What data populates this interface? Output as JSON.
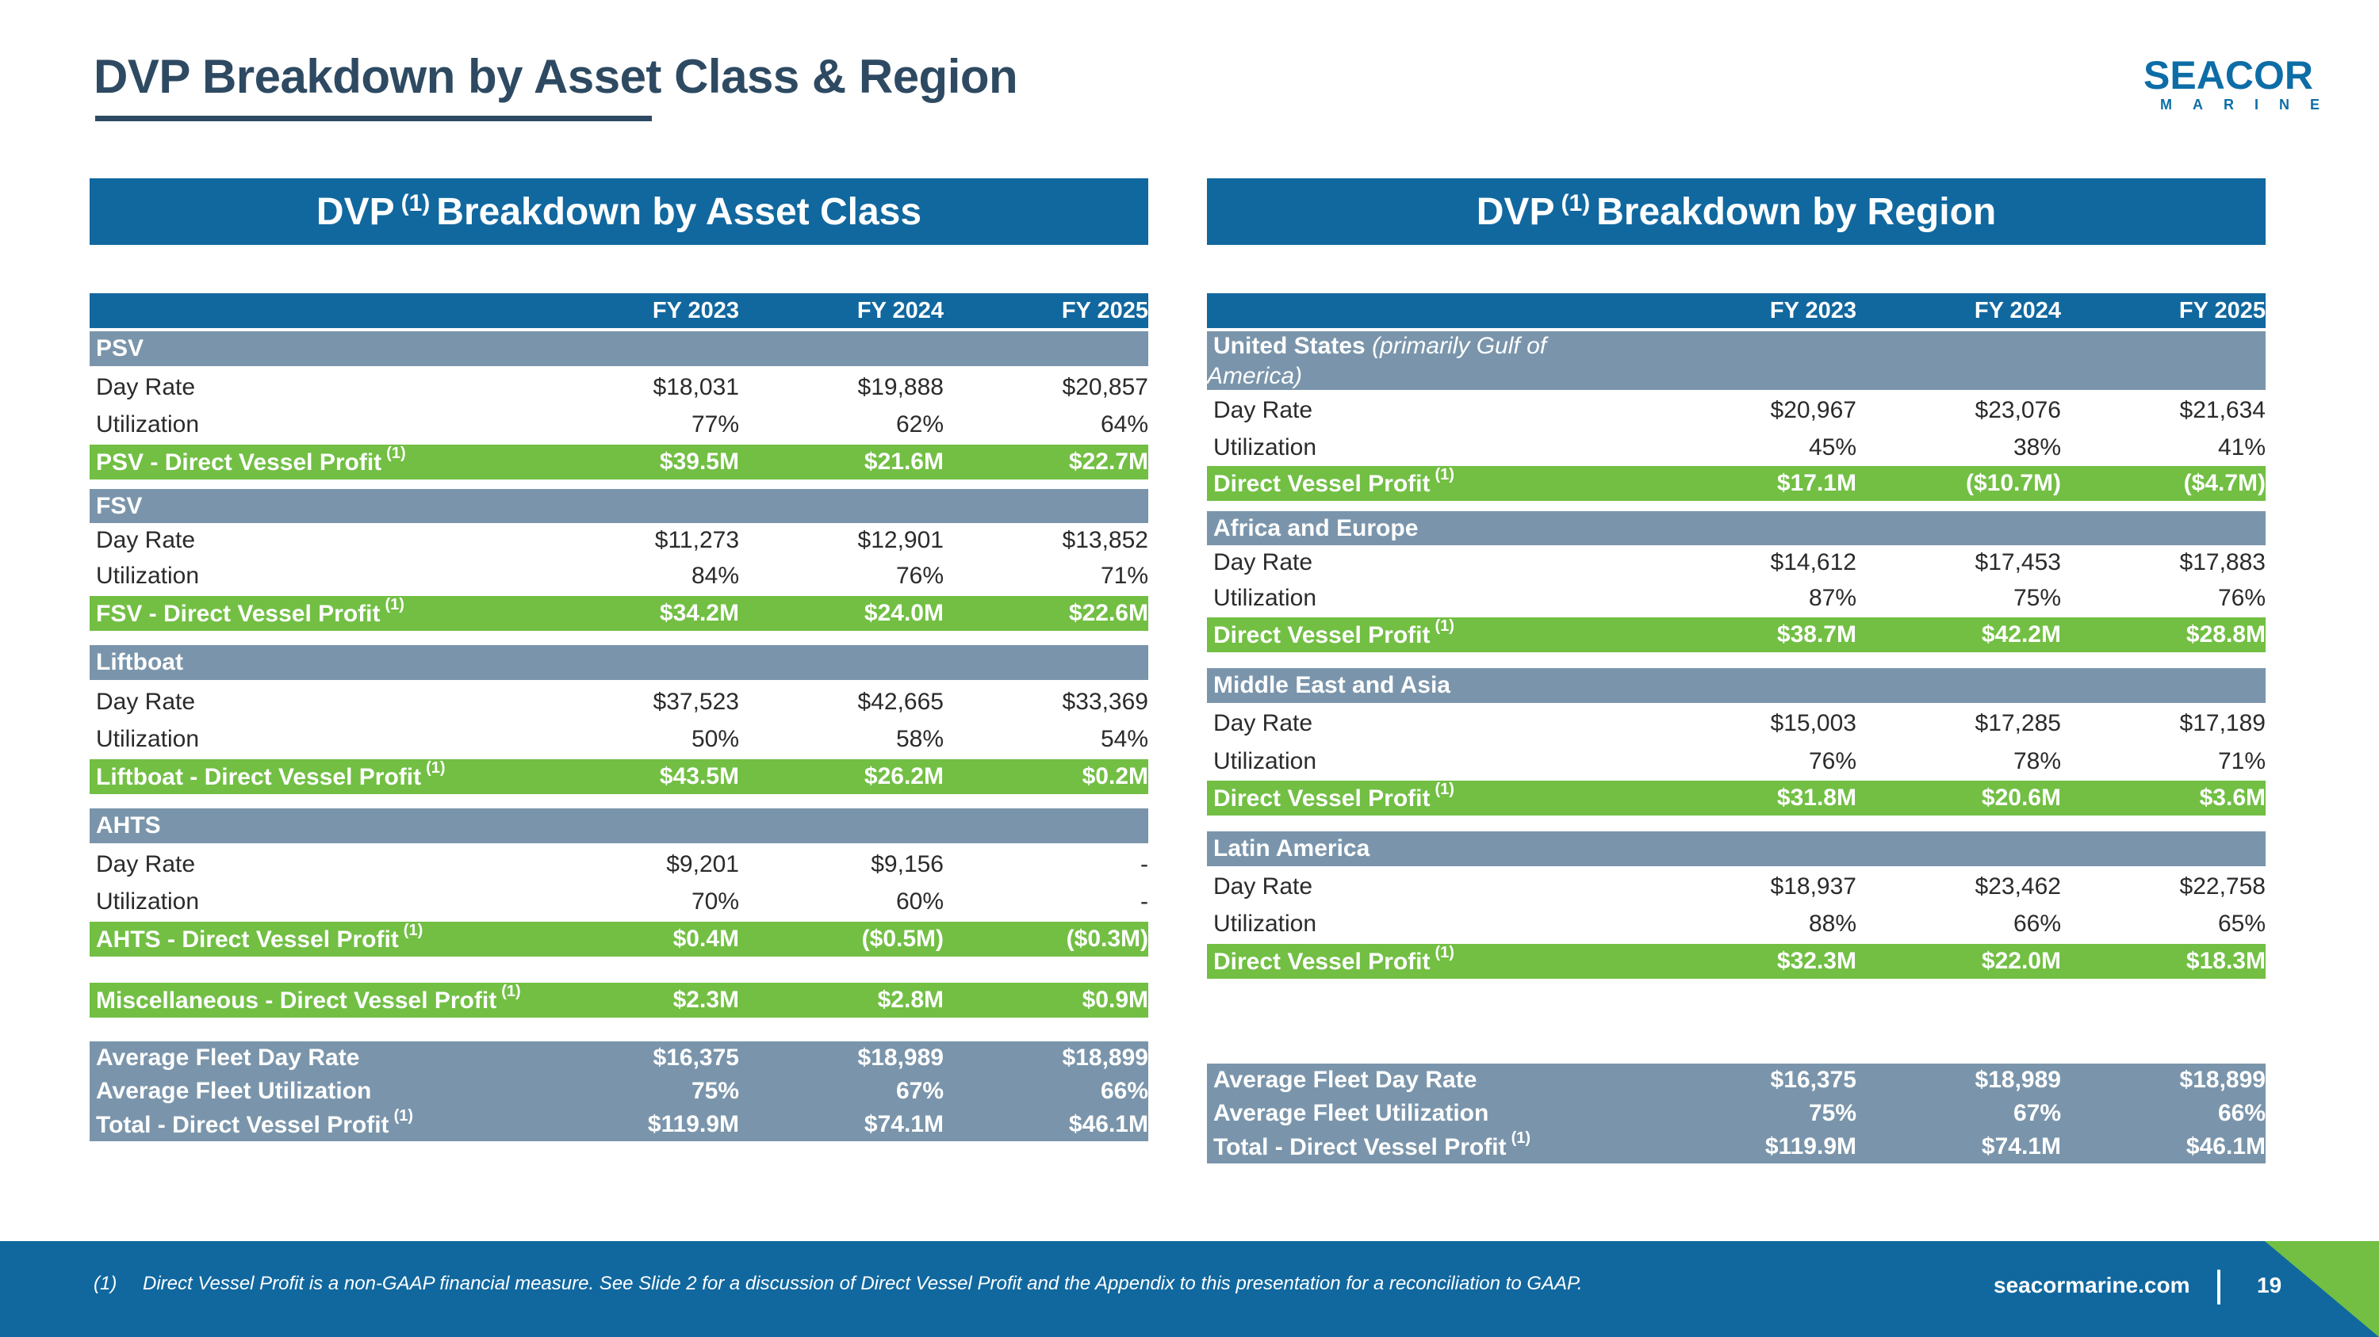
{
  "title": "DVP Breakdown by Asset Class & Region",
  "logo": {
    "top": "SEACOR",
    "bottom": "MARINE"
  },
  "colors": {
    "primary_blue": "#11689f",
    "section_gray": "#7a95ab",
    "profit_green": "#72bf44",
    "title_navy": "#2e4a62"
  },
  "left": {
    "header_pre": "DVP",
    "header_sup": "(1)",
    "header_post": "Breakdown by Asset Class",
    "columns": [
      "FY 2023",
      "FY 2024",
      "FY 2025"
    ],
    "psv": {
      "name": "PSV",
      "day_rate": {
        "label": "Day Rate",
        "values": [
          "$18,031",
          "$19,888",
          "$20,857"
        ]
      },
      "utilization": {
        "label": "Utilization",
        "values": [
          "77%",
          "62%",
          "64%"
        ]
      },
      "profit": {
        "label": "PSV - Direct Vessel Profit",
        "sup": "(1)",
        "values": [
          "$39.5M",
          "$21.6M",
          "$22.7M"
        ]
      }
    },
    "fsv": {
      "name": "FSV",
      "day_rate": {
        "label": "Day Rate",
        "values": [
          "$11,273",
          "$12,901",
          "$13,852"
        ]
      },
      "utilization": {
        "label": "Utilization",
        "values": [
          "84%",
          "76%",
          "71%"
        ]
      },
      "profit": {
        "label": "FSV - Direct Vessel Profit",
        "sup": "(1)",
        "values": [
          "$34.2M",
          "$24.0M",
          "$22.6M"
        ]
      }
    },
    "liftboat": {
      "name": "Liftboat",
      "day_rate": {
        "label": "Day Rate",
        "values": [
          "$37,523",
          "$42,665",
          "$33,369"
        ]
      },
      "utilization": {
        "label": "Utilization",
        "values": [
          "50%",
          "58%",
          "54%"
        ]
      },
      "profit": {
        "label": "Liftboat - Direct Vessel Profit",
        "sup": "(1)",
        "values": [
          "$43.5M",
          "$26.2M",
          "$0.2M"
        ]
      }
    },
    "ahts": {
      "name": "AHTS",
      "day_rate": {
        "label": "Day Rate",
        "values": [
          "$9,201",
          "$9,156",
          "-"
        ]
      },
      "utilization": {
        "label": "Utilization",
        "values": [
          "70%",
          "60%",
          "-"
        ]
      },
      "profit": {
        "label": "AHTS - Direct Vessel Profit",
        "sup": "(1)",
        "values": [
          "$0.4M",
          "($0.5M)",
          "($0.3M)"
        ]
      }
    },
    "misc": {
      "label": "Miscellaneous - Direct Vessel Profit",
      "sup": "(1)",
      "values": [
        "$2.3M",
        "$2.8M",
        "$0.9M"
      ]
    },
    "summary": {
      "day_rate": {
        "label": "Average Fleet Day Rate",
        "values": [
          "$16,375",
          "$18,989",
          "$18,899"
        ]
      },
      "utilization": {
        "label": "Average Fleet Utilization",
        "values": [
          "75%",
          "67%",
          "66%"
        ]
      },
      "total": {
        "label": "Total - Direct Vessel Profit",
        "sup": "(1)",
        "values": [
          "$119.9M",
          "$74.1M",
          "$46.1M"
        ]
      }
    }
  },
  "right": {
    "header_pre": "DVP",
    "header_sup": "(1)",
    "header_post": "Breakdown by Region",
    "columns": [
      "FY 2023",
      "FY 2024",
      "FY 2025"
    ],
    "us": {
      "name": "United States",
      "name_note": "(primarily Gulf of America)",
      "day_rate": {
        "label": "Day Rate",
        "values": [
          "$20,967",
          "$23,076",
          "$21,634"
        ]
      },
      "utilization": {
        "label": "Utilization",
        "values": [
          "45%",
          "38%",
          "41%"
        ]
      },
      "profit": {
        "label": "Direct Vessel Profit",
        "sup": "(1)",
        "values": [
          "$17.1M",
          "($10.7M)",
          "($4.7M)"
        ]
      }
    },
    "africa": {
      "name": "Africa and Europe",
      "day_rate": {
        "label": "Day Rate",
        "values": [
          "$14,612",
          "$17,453",
          "$17,883"
        ]
      },
      "utilization": {
        "label": "Utilization",
        "values": [
          "87%",
          "75%",
          "76%"
        ]
      },
      "profit": {
        "label": "Direct Vessel Profit",
        "sup": "(1)",
        "values": [
          "$38.7M",
          "$42.2M",
          "$28.8M"
        ]
      }
    },
    "mea": {
      "name": "Middle East and Asia",
      "day_rate": {
        "label": "Day Rate",
        "values": [
          "$15,003",
          "$17,285",
          "$17,189"
        ]
      },
      "utilization": {
        "label": "Utilization",
        "values": [
          "76%",
          "78%",
          "71%"
        ]
      },
      "profit": {
        "label": "Direct Vessel Profit",
        "sup": "(1)",
        "values": [
          "$31.8M",
          "$20.6M",
          "$3.6M"
        ]
      }
    },
    "latam": {
      "name": "Latin America",
      "day_rate": {
        "label": "Day Rate",
        "values": [
          "$18,937",
          "$23,462",
          "$22,758"
        ]
      },
      "utilization": {
        "label": "Utilization",
        "values": [
          "88%",
          "66%",
          "65%"
        ]
      },
      "profit": {
        "label": "Direct Vessel Profit",
        "sup": "(1)",
        "values": [
          "$32.3M",
          "$22.0M",
          "$18.3M"
        ]
      }
    },
    "summary": {
      "day_rate": {
        "label": "Average Fleet Day Rate",
        "values": [
          "$16,375",
          "$18,989",
          "$18,899"
        ]
      },
      "utilization": {
        "label": "Average Fleet Utilization",
        "values": [
          "75%",
          "67%",
          "66%"
        ]
      },
      "total": {
        "label": "Total - Direct Vessel Profit",
        "sup": "(1)",
        "values": [
          "$119.9M",
          "$74.1M",
          "$46.1M"
        ]
      }
    }
  },
  "footer": {
    "note_num": "(1)",
    "note": "Direct Vessel Profit is a non-GAAP financial measure. See Slide 2 for a discussion of Direct Vessel Profit and the Appendix to this presentation for a reconciliation to GAAP.",
    "site": "seacormarine.com",
    "page": "19"
  }
}
